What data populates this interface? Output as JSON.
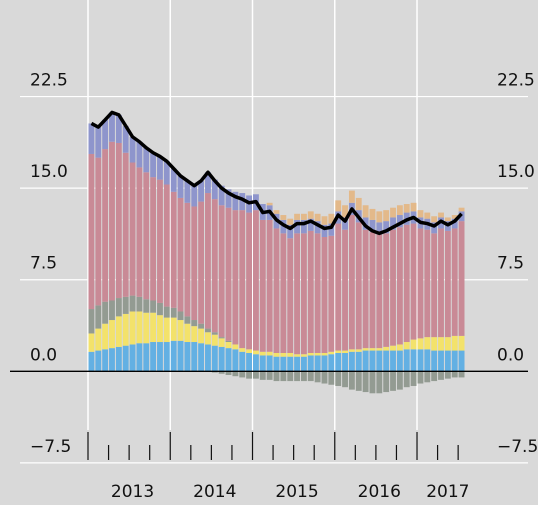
{
  "chart_data": {
    "type": "stacked-bar-line",
    "categories": [
      null,
      null,
      null,
      null,
      null,
      null,
      "2013",
      null,
      null,
      null,
      null,
      null,
      null,
      null,
      null,
      null,
      null,
      null,
      "2014",
      null,
      null,
      null,
      null,
      null,
      null,
      null,
      null,
      null,
      null,
      null,
      "2015",
      null,
      null,
      null,
      null,
      null,
      null,
      null,
      null,
      null,
      null,
      null,
      "2016",
      null,
      null,
      null,
      null,
      null,
      null,
      null,
      null,
      null,
      "2017",
      null,
      null
    ],
    "series": [
      {
        "color": "#63b0e3",
        "values": [
          1.6,
          1.7,
          1.8,
          1.9,
          2.0,
          2.1,
          2.2,
          2.3,
          2.3,
          2.4,
          2.4,
          2.4,
          2.5,
          2.5,
          2.4,
          2.4,
          2.3,
          2.2,
          2.1,
          2.0,
          1.9,
          1.8,
          1.6,
          1.5,
          1.4,
          1.3,
          1.3,
          1.2,
          1.2,
          1.2,
          1.2,
          1.2,
          1.3,
          1.3,
          1.3,
          1.4,
          1.5,
          1.5,
          1.6,
          1.6,
          1.7,
          1.7,
          1.7,
          1.7,
          1.7,
          1.7,
          1.8,
          1.8,
          1.8,
          1.8,
          1.7,
          1.7,
          1.7,
          1.7,
          1.7
        ]
      },
      {
        "color": "#f3e26b",
        "values": [
          1.5,
          1.8,
          2.1,
          2.3,
          2.5,
          2.6,
          2.7,
          2.6,
          2.5,
          2.4,
          2.2,
          2.0,
          1.9,
          1.7,
          1.5,
          1.3,
          1.2,
          1.0,
          0.9,
          0.7,
          0.5,
          0.4,
          0.3,
          0.3,
          0.3,
          0.3,
          0.3,
          0.3,
          0.3,
          0.3,
          0.2,
          0.2,
          0.2,
          0.2,
          0.2,
          0.2,
          0.2,
          0.2,
          0.2,
          0.2,
          0.2,
          0.2,
          0.2,
          0.3,
          0.4,
          0.5,
          0.6,
          0.8,
          0.9,
          1.0,
          1.1,
          1.1,
          1.1,
          1.2,
          1.2
        ]
      },
      {
        "color": "#939b92",
        "values": [
          2.0,
          1.9,
          1.8,
          1.6,
          1.5,
          1.4,
          1.3,
          1.2,
          1.1,
          1.0,
          1.0,
          0.9,
          0.8,
          0.7,
          0.6,
          0.5,
          0.4,
          0.3,
          0.2,
          0.1,
          0.1,
          0,
          0,
          0,
          0,
          0,
          0,
          0,
          0,
          0,
          0,
          0,
          0,
          0,
          0,
          0,
          0,
          0,
          0,
          0,
          0,
          0,
          0,
          0,
          0,
          0,
          0,
          0,
          0,
          0,
          0,
          0,
          0,
          0,
          0
        ]
      },
      {
        "color": "#c98a96",
        "values": [
          12.7,
          12.1,
          12.5,
          13.0,
          12.7,
          11.8,
          10.9,
          10.6,
          10.4,
          10.1,
          10.1,
          10.0,
          9.5,
          9.3,
          9.3,
          9.3,
          10.0,
          11.1,
          10.9,
          10.8,
          10.9,
          11.0,
          11.3,
          11.2,
          11.5,
          10.8,
          10.8,
          10.2,
          9.8,
          9.4,
          9.9,
          9.9,
          10.0,
          9.8,
          9.5,
          9.5,
          10.4,
          9.9,
          11.0,
          10.4,
          9.7,
          9.5,
          9.3,
          9.3,
          9.5,
          9.6,
          9.6,
          9.5,
          9.0,
          8.8,
          8.5,
          8.9,
          8.7,
          8.8,
          9.4
        ]
      },
      {
        "color": "#8e95cc",
        "values": [
          2.5,
          2.5,
          2.4,
          2.4,
          2.3,
          2.2,
          2.1,
          2.1,
          2.0,
          2.0,
          1.9,
          1.9,
          1.9,
          1.8,
          1.8,
          1.7,
          1.7,
          1.7,
          1.6,
          1.6,
          1.5,
          1.5,
          1.4,
          1.4,
          1.3,
          1.3,
          1.2,
          1.2,
          1.1,
          1.1,
          1.1,
          1.1,
          1.0,
          1.0,
          1.0,
          1.0,
          1.0,
          1.0,
          1.0,
          1.0,
          1.0,
          1.0,
          1.0,
          1.0,
          1.0,
          1.0,
          1.0,
          1.0,
          0.9,
          0.9,
          0.9,
          0.9,
          0.8,
          0.8,
          0.8
        ]
      },
      {
        "color": "#e3b98a",
        "values": [
          0,
          0,
          0,
          0,
          0,
          0,
          0,
          0,
          0,
          0,
          0,
          0,
          0,
          0,
          0,
          0,
          0,
          0,
          0,
          0,
          0,
          0,
          0,
          0,
          0,
          0,
          0.2,
          0.3,
          0.4,
          0.5,
          0.5,
          0.5,
          0.6,
          0.6,
          0.7,
          0.8,
          0.9,
          1.0,
          1.0,
          1.0,
          1.0,
          0.9,
          0.9,
          0.9,
          0.8,
          0.8,
          0.7,
          0.7,
          0.6,
          0.5,
          0.5,
          0.4,
          0.3,
          0.3,
          0.3
        ]
      },
      {
        "color": "#939b92",
        "values": [
          0,
          0,
          0,
          0,
          0,
          0,
          0,
          0,
          0,
          0,
          0,
          0,
          0,
          0,
          0,
          0,
          0,
          0,
          -0.1,
          -0.2,
          -0.3,
          -0.4,
          -0.5,
          -0.6,
          -0.6,
          -0.7,
          -0.7,
          -0.8,
          -0.8,
          -0.8,
          -0.8,
          -0.8,
          -0.8,
          -0.9,
          -1.0,
          -1.1,
          -1.2,
          -1.3,
          -1.5,
          -1.6,
          -1.7,
          -1.8,
          -1.8,
          -1.7,
          -1.6,
          -1.5,
          -1.3,
          -1.2,
          -1.0,
          -0.9,
          -0.8,
          -0.7,
          -0.6,
          -0.5,
          -0.5
        ]
      }
    ],
    "line": {
      "color": "#000000",
      "values": [
        20.3,
        20.0,
        20.6,
        21.2,
        21.0,
        20.1,
        19.2,
        18.8,
        18.3,
        17.9,
        17.6,
        17.2,
        16.6,
        16.0,
        15.6,
        15.2,
        15.6,
        16.3,
        15.6,
        15.0,
        14.6,
        14.3,
        14.1,
        13.8,
        13.9,
        13.0,
        13.1,
        12.4,
        12.0,
        11.7,
        12.1,
        12.1,
        12.3,
        12.0,
        11.7,
        11.8,
        12.8,
        12.3,
        13.3,
        12.6,
        11.9,
        11.5,
        11.3,
        11.5,
        11.8,
        12.1,
        12.4,
        12.6,
        12.2,
        12.1,
        11.9,
        12.3,
        12.0,
        12.3,
        12.9
      ]
    },
    "ylim": [
      -8,
      30
    ],
    "yticks": [
      22.5,
      {
        "value": 15,
        "label": "15.0"
      },
      7.5,
      {
        "value": 0,
        "label": "0.0"
      },
      {
        "value": -7.5,
        "label": "−7.5"
      }
    ],
    "grid": true
  }
}
